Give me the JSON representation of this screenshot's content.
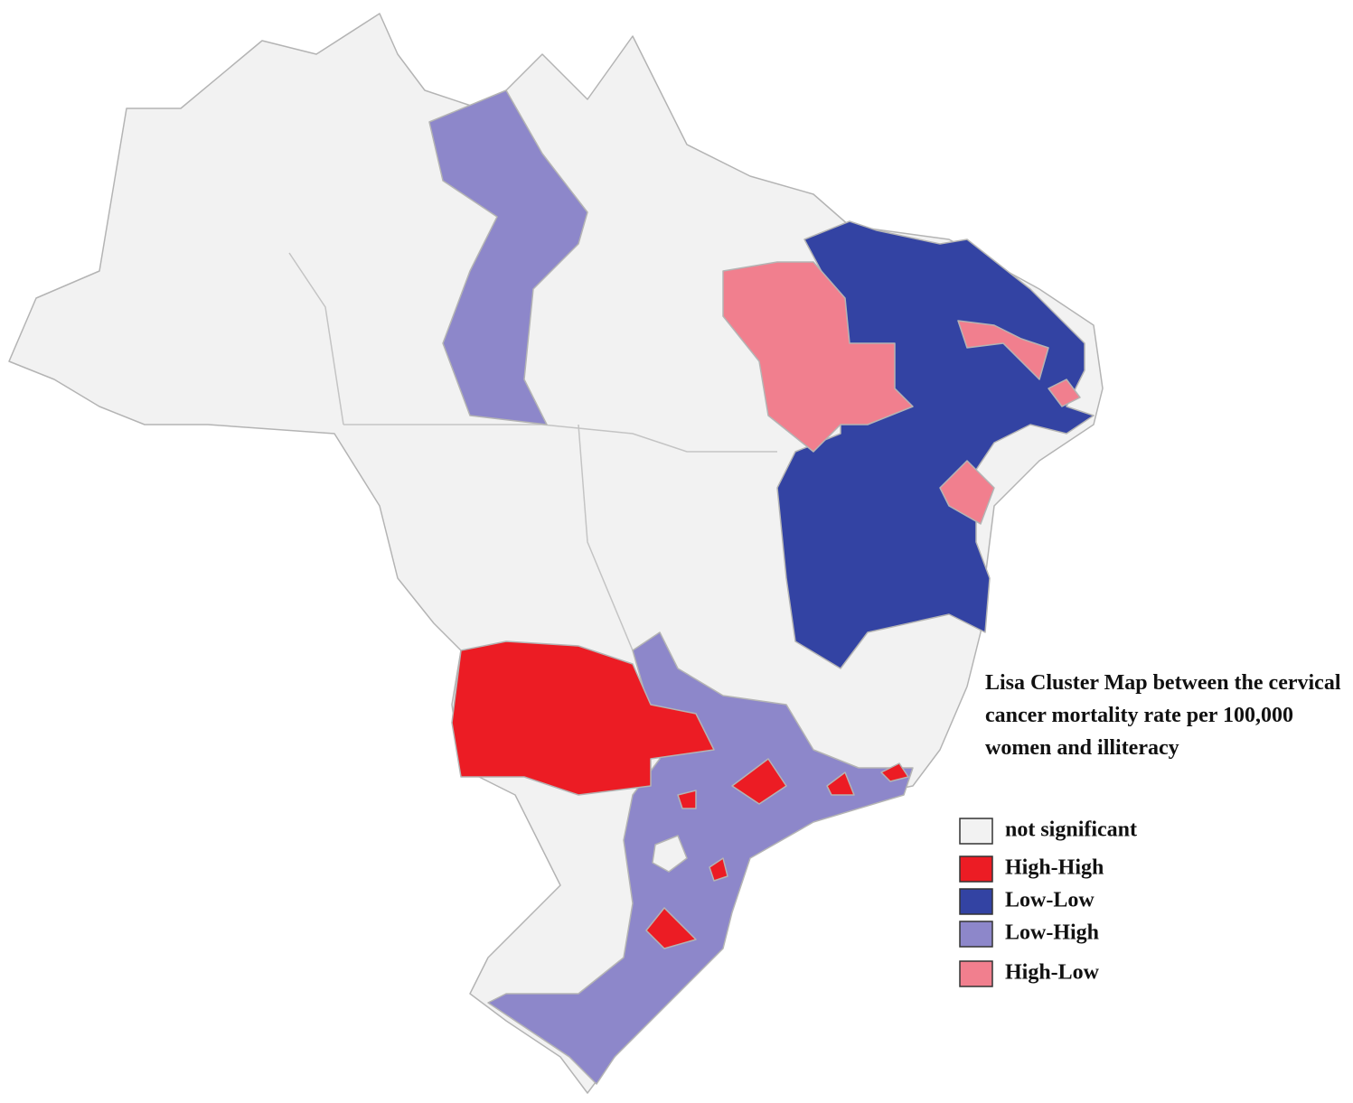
{
  "title": "Lisa Cluster Map between the cervical cancer mortality rate per 100,000 women and illiteracy",
  "legend": [
    {
      "name": "not significant",
      "color": "#f2f2f2"
    },
    {
      "name": "High-High",
      "color": "#ec1c24"
    },
    {
      "name": "Low-Low",
      "color": "#3343a3"
    },
    {
      "name": "Low-High",
      "color": "#8d87ca"
    },
    {
      "name": "High-Low",
      "color": "#f17f8e"
    }
  ]
}
